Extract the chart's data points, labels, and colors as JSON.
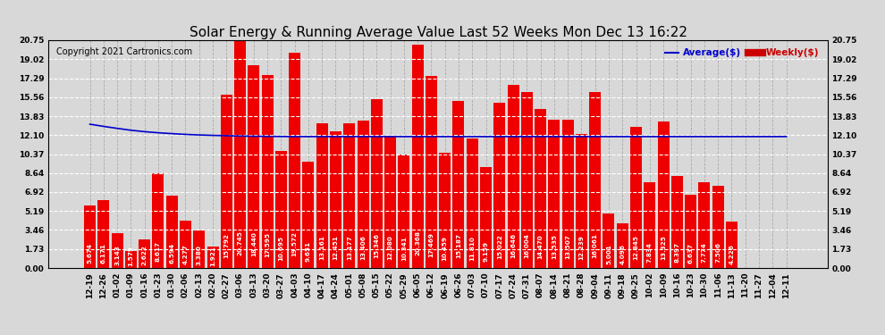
{
  "title": "Solar Energy & Running Average Value Last 52 Weeks Mon Dec 13 16:22",
  "copyright": "Copyright 2021 Cartronics.com",
  "categories": [
    "12-19",
    "12-26",
    "01-02",
    "01-09",
    "01-16",
    "01-23",
    "01-30",
    "02-06",
    "02-13",
    "02-20",
    "02-27",
    "03-06",
    "03-13",
    "03-20",
    "03-27",
    "04-03",
    "04-10",
    "04-17",
    "04-24",
    "05-01",
    "05-08",
    "05-15",
    "05-22",
    "05-29",
    "06-05",
    "06-12",
    "06-19",
    "06-26",
    "07-03",
    "07-10",
    "07-17",
    "07-24",
    "07-31",
    "08-07",
    "08-14",
    "08-21",
    "08-28",
    "09-04",
    "09-11",
    "09-18",
    "09-25",
    "10-02",
    "10-09",
    "10-16",
    "10-23",
    "10-30",
    "11-06",
    "11-13",
    "11-20",
    "11-27",
    "12-04",
    "12-11"
  ],
  "weekly_values": [
    5.674,
    6.171,
    3.143,
    1.579,
    2.622,
    8.617,
    6.594,
    4.277,
    3.38,
    1.921,
    15.792,
    20.745,
    18.44,
    17.595,
    10.695,
    19.572,
    9.651,
    13.161,
    12.451,
    13.177,
    13.406,
    15.346,
    12.08,
    10.341,
    20.368,
    17.469,
    10.459,
    15.187,
    11.81,
    9.159,
    15.022,
    16.646,
    16.004,
    14.47,
    13.535,
    13.507,
    12.239,
    16.061,
    5.001,
    4.096,
    12.845,
    7.834,
    13.325,
    8.397,
    6.637,
    7.774,
    7.506,
    4.226,
    0.0,
    0.0,
    0.0,
    0.0
  ],
  "average_line": [
    13.1,
    12.9,
    12.72,
    12.55,
    12.42,
    12.32,
    12.24,
    12.17,
    12.12,
    12.08,
    12.05,
    12.02,
    12.0,
    11.99,
    11.98,
    11.97,
    11.97,
    11.97,
    11.97,
    11.97,
    11.97,
    11.97,
    11.97,
    11.97,
    11.97,
    11.97,
    11.97,
    11.97,
    11.97,
    11.97,
    11.97,
    11.97,
    11.97,
    11.97,
    11.97,
    11.97,
    11.97,
    11.97,
    11.97,
    11.97,
    11.97,
    11.97,
    11.97,
    11.97,
    11.97,
    11.97,
    11.97,
    11.97,
    11.97,
    11.97,
    11.97,
    11.97
  ],
  "bar_color": "#ee0000",
  "line_color": "#0000cc",
  "background_color": "#d8d8d8",
  "plot_bg_color": "#d8d8d8",
  "grid_color_h": "#ffffff",
  "grid_color_v": "#aaaaaa",
  "ylim": [
    0.0,
    20.75
  ],
  "yticks": [
    0.0,
    1.73,
    3.46,
    5.19,
    6.92,
    8.64,
    10.37,
    12.1,
    13.83,
    15.56,
    17.29,
    19.02,
    20.75
  ],
  "legend_average_label": "Average($)",
  "legend_weekly_label": "Weekly($)",
  "legend_average_color": "#0000cc",
  "legend_weekly_color": "#cc0000",
  "title_fontsize": 11,
  "tick_fontsize": 6.5,
  "value_fontsize": 5.2,
  "copyright_fontsize": 7
}
